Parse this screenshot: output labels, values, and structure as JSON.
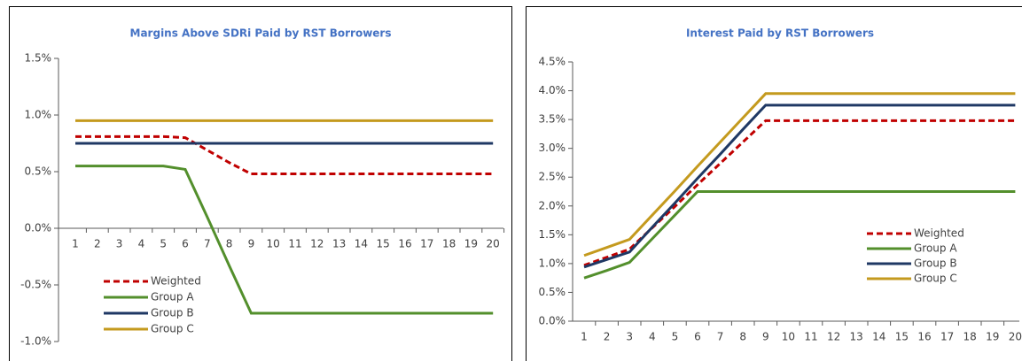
{
  "chart_data": [
    {
      "type": "line",
      "title": "Margins Above SDRi Paid by RST Borrowers",
      "categories": [
        "1",
        "2",
        "3",
        "4",
        "5",
        "6",
        "7",
        "8",
        "9",
        "10",
        "11",
        "12",
        "13",
        "14",
        "15",
        "16",
        "17",
        "18",
        "19",
        "20"
      ],
      "ylim": [
        -1.0,
        1.5
      ],
      "yticks": [
        {
          "value": -1.0,
          "label": "-1.0%"
        },
        {
          "value": -0.5,
          "label": "-0.5%"
        },
        {
          "value": 0.0,
          "label": "0.0%"
        },
        {
          "value": 0.5,
          "label": "0.5%"
        },
        {
          "value": 1.0,
          "label": "1.0%"
        },
        {
          "value": 1.5,
          "label": "1.5%"
        }
      ],
      "series": [
        {
          "name": "Weighted",
          "color": "#c00000",
          "dashed": true,
          "values": [
            0.81,
            0.81,
            0.81,
            0.81,
            0.81,
            0.8,
            0.69,
            0.58,
            0.48,
            0.48,
            0.48,
            0.48,
            0.48,
            0.48,
            0.48,
            0.48,
            0.48,
            0.48,
            0.48,
            0.48
          ]
        },
        {
          "name": "Group A",
          "color": "#538f2c",
          "values": [
            0.55,
            0.55,
            0.55,
            0.55,
            0.55,
            0.52,
            0.1,
            -0.33,
            -0.75,
            -0.75,
            -0.75,
            -0.75,
            -0.75,
            -0.75,
            -0.75,
            -0.75,
            -0.75,
            -0.75,
            -0.75,
            -0.75
          ]
        },
        {
          "name": "Group B",
          "color": "#1f3864",
          "values": [
            0.75,
            0.75,
            0.75,
            0.75,
            0.75,
            0.75,
            0.75,
            0.75,
            0.75,
            0.75,
            0.75,
            0.75,
            0.75,
            0.75,
            0.75,
            0.75,
            0.75,
            0.75,
            0.75,
            0.75
          ]
        },
        {
          "name": "Group C",
          "color": "#c49a1e",
          "values": [
            0.95,
            0.95,
            0.95,
            0.95,
            0.95,
            0.95,
            0.95,
            0.95,
            0.95,
            0.95,
            0.95,
            0.95,
            0.95,
            0.95,
            0.95,
            0.95,
            0.95,
            0.95,
            0.95,
            0.95
          ]
        }
      ]
    },
    {
      "type": "line",
      "title": "Interest Paid by RST Borrowers",
      "categories": [
        "1",
        "2",
        "3",
        "4",
        "5",
        "6",
        "7",
        "8",
        "9",
        "10",
        "11",
        "12",
        "13",
        "14",
        "15",
        "16",
        "17",
        "18",
        "19",
        "20"
      ],
      "ylim": [
        0.0,
        4.5
      ],
      "yticks": [
        {
          "value": 0.0,
          "label": "0.0%"
        },
        {
          "value": 0.5,
          "label": "0.5%"
        },
        {
          "value": 1.0,
          "label": "1.0%"
        },
        {
          "value": 1.5,
          "label": "1.5%"
        },
        {
          "value": 2.0,
          "label": "2.0%"
        },
        {
          "value": 2.5,
          "label": "2.5%"
        },
        {
          "value": 3.0,
          "label": "3.0%"
        },
        {
          "value": 3.5,
          "label": "3.5%"
        },
        {
          "value": 4.0,
          "label": "4.0%"
        },
        {
          "value": 4.5,
          "label": "4.5%"
        }
      ],
      "series": [
        {
          "name": "Weighted",
          "color": "#c00000",
          "dashed": true,
          "values": [
            0.97,
            1.11,
            1.25,
            1.62,
            1.99,
            2.37,
            2.74,
            3.11,
            3.48,
            3.48,
            3.48,
            3.48,
            3.48,
            3.48,
            3.48,
            3.48,
            3.48,
            3.48,
            3.48,
            3.48
          ]
        },
        {
          "name": "Group A",
          "color": "#538f2c",
          "values": [
            0.75,
            0.88,
            1.02,
            1.43,
            1.84,
            2.25,
            2.25,
            2.25,
            2.25,
            2.25,
            2.25,
            2.25,
            2.25,
            2.25,
            2.25,
            2.25,
            2.25,
            2.25,
            2.25,
            2.25
          ]
        },
        {
          "name": "Group B",
          "color": "#1f3864",
          "values": [
            0.94,
            1.07,
            1.2,
            1.63,
            2.05,
            2.48,
            2.9,
            3.33,
            3.75,
            3.75,
            3.75,
            3.75,
            3.75,
            3.75,
            3.75,
            3.75,
            3.75,
            3.75,
            3.75,
            3.75
          ]
        },
        {
          "name": "Group C",
          "color": "#c49a1e",
          "values": [
            1.14,
            1.28,
            1.42,
            1.84,
            2.26,
            2.69,
            3.11,
            3.53,
            3.95,
            3.95,
            3.95,
            3.95,
            3.95,
            3.95,
            3.95,
            3.95,
            3.95,
            3.95,
            3.95,
            3.95
          ]
        }
      ]
    }
  ]
}
